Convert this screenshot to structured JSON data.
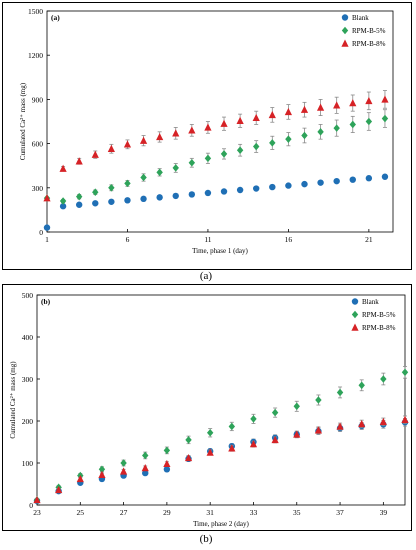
{
  "captions": {
    "a": "(a)",
    "b": "(b)"
  },
  "colors": {
    "blank": "#1f6fb5",
    "rpm5": "#2ea35a",
    "rpm8": "#d62226",
    "error": "#888888"
  },
  "chart_data": [
    {
      "type": "scatter",
      "panel_label": "(a)",
      "xlabel": "Time, phase 1 (day)",
      "ylabel": "Cumulated Ca²⁺ mass (mg)",
      "xlim": [
        1,
        22.5
      ],
      "ylim": [
        0,
        1500
      ],
      "xticks": [
        1,
        6,
        11,
        16,
        21
      ],
      "yticks": [
        0,
        300,
        600,
        900,
        1200,
        1500
      ],
      "legend_position": "top-right",
      "x": [
        1,
        2,
        3,
        4,
        5,
        6,
        7,
        8,
        9,
        10,
        11,
        12,
        13,
        14,
        15,
        16,
        17,
        18,
        19,
        20,
        21,
        22
      ],
      "series": [
        {
          "name": "Blank",
          "marker": "circle",
          "color": "#1f6fb5",
          "values": [
            30,
            175,
            185,
            195,
            205,
            215,
            225,
            235,
            245,
            255,
            265,
            275,
            285,
            295,
            305,
            315,
            325,
            335,
            345,
            355,
            365,
            375
          ],
          "error": [
            0,
            10,
            10,
            10,
            10,
            10,
            10,
            10,
            10,
            10,
            10,
            10,
            10,
            10,
            10,
            10,
            10,
            10,
            10,
            10,
            15,
            15
          ]
        },
        {
          "name": "RPM-B-5%",
          "marker": "diamond",
          "color": "#2ea35a",
          "values": [
            230,
            210,
            240,
            270,
            300,
            330,
            370,
            405,
            435,
            470,
            500,
            530,
            555,
            580,
            605,
            630,
            655,
            680,
            705,
            730,
            750,
            770
          ],
          "error": [
            0,
            10,
            15,
            15,
            20,
            20,
            25,
            25,
            30,
            30,
            35,
            35,
            40,
            40,
            45,
            45,
            50,
            50,
            55,
            55,
            60,
            60
          ]
        },
        {
          "name": "RPM-B-8%",
          "marker": "triangle",
          "color": "#d62226",
          "values": [
            230,
            430,
            480,
            525,
            565,
            595,
            620,
            645,
            670,
            690,
            710,
            735,
            755,
            775,
            795,
            815,
            830,
            845,
            860,
            875,
            890,
            900
          ],
          "error": [
            0,
            15,
            20,
            25,
            30,
            30,
            35,
            35,
            40,
            40,
            40,
            45,
            45,
            45,
            50,
            50,
            50,
            55,
            55,
            55,
            60,
            60
          ]
        }
      ]
    },
    {
      "type": "scatter",
      "panel_label": "(b)",
      "xlabel": "Time, phase 2 (day)",
      "ylabel": "Cumulated Ca²⁺ mass (mg)",
      "xlim": [
        23,
        40
      ],
      "ylim": [
        0,
        500
      ],
      "xticks": [
        23,
        25,
        27,
        29,
        31,
        33,
        35,
        37,
        39
      ],
      "yticks": [
        0,
        100,
        200,
        300,
        400,
        500
      ],
      "legend_position": "top-right",
      "x": [
        23,
        24,
        25,
        26,
        27,
        28,
        29,
        30,
        31,
        32,
        33,
        34,
        35,
        36,
        37,
        38,
        39,
        40
      ],
      "series": [
        {
          "name": "Blank",
          "marker": "circle",
          "color": "#1f6fb5",
          "values": [
            10,
            33,
            53,
            62,
            70,
            76,
            85,
            110,
            128,
            140,
            150,
            160,
            168,
            176,
            183,
            188,
            192,
            197
          ],
          "error": [
            3,
            3,
            4,
            4,
            5,
            5,
            5,
            6,
            6,
            6,
            7,
            7,
            7,
            8,
            8,
            8,
            9,
            9
          ]
        },
        {
          "name": "RPM-B-5%",
          "marker": "diamond",
          "color": "#2ea35a",
          "values": [
            12,
            42,
            70,
            85,
            100,
            118,
            130,
            155,
            172,
            187,
            205,
            220,
            235,
            250,
            268,
            285,
            300,
            316
          ],
          "error": [
            3,
            4,
            5,
            6,
            7,
            8,
            8,
            9,
            10,
            10,
            11,
            11,
            12,
            12,
            13,
            13,
            14,
            14
          ]
        },
        {
          "name": "RPM-B-8%",
          "marker": "triangle",
          "color": "#d62226",
          "values": [
            12,
            36,
            62,
            72,
            80,
            88,
            98,
            112,
            125,
            135,
            145,
            155,
            168,
            178,
            187,
            193,
            198,
            203
          ],
          "error": [
            3,
            3,
            4,
            4,
            5,
            5,
            5,
            6,
            6,
            7,
            7,
            7,
            8,
            8,
            8,
            9,
            9,
            9
          ]
        }
      ]
    }
  ]
}
